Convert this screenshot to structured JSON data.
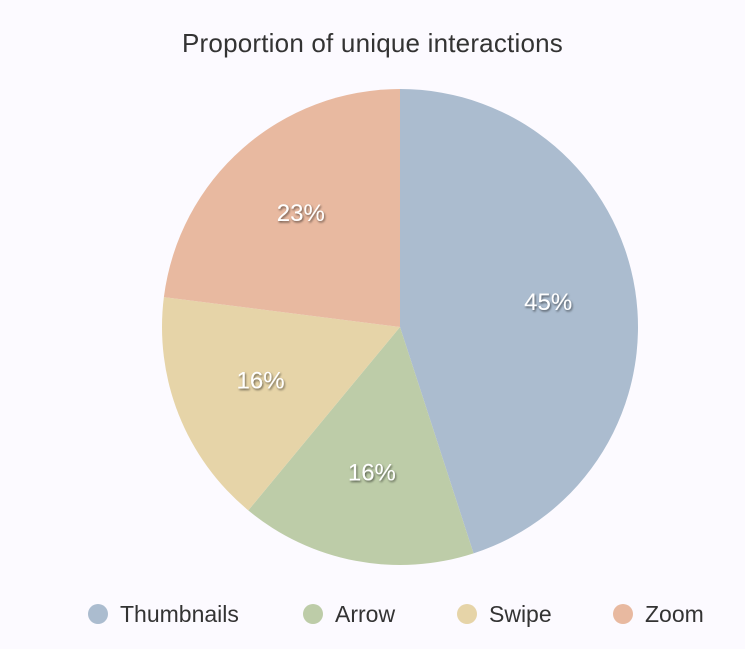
{
  "chart_data": {
    "type": "pie",
    "title": "Proportion of unique interactions",
    "series": [
      {
        "name": "",
        "values": [
          {
            "label": "Thumbnails",
            "value": 45,
            "display": "45%",
            "color": "#abbccf"
          },
          {
            "label": "Arrow",
            "value": 16,
            "display": "16%",
            "color": "#bdcca8"
          },
          {
            "label": "Swipe",
            "value": 16,
            "display": "16%",
            "color": "#e6d4a8"
          },
          {
            "label": "Zoom",
            "value": 23,
            "display": "23%",
            "color": "#e8b9a0"
          }
        ]
      }
    ],
    "legend_placement": "bottom",
    "start_angle": "top, clockwise"
  }
}
